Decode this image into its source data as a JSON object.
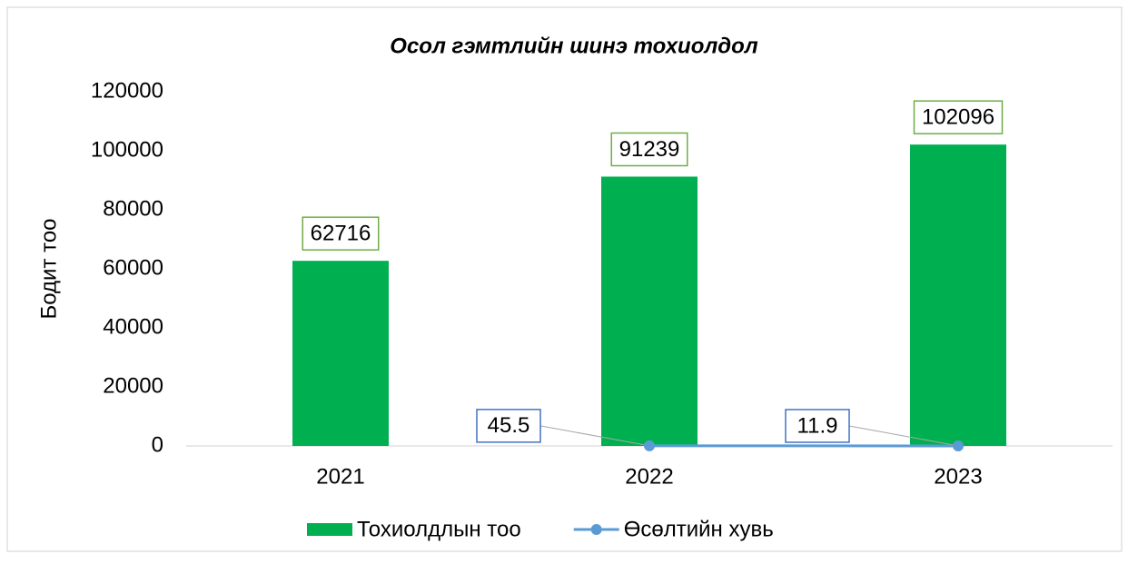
{
  "chart_data": {
    "type": "bar",
    "title": "Осол гэмтлийн шинэ тохиолдол",
    "y_label": "Бодит тоо",
    "categories": [
      "2021",
      "2022",
      "2023"
    ],
    "series": [
      {
        "name": "Тохиолдлын тоо",
        "type": "bar",
        "color": "#00b050",
        "values": [
          62716,
          91239,
          102096
        ]
      },
      {
        "name": "Өсөлтийн хувь",
        "type": "line",
        "color": "#5b9bd5",
        "values": [
          null,
          45.5,
          11.9
        ]
      }
    ],
    "ylim": [
      0,
      120000
    ],
    "yticks": [
      0,
      20000,
      40000,
      60000,
      80000,
      100000,
      120000
    ],
    "grid": false,
    "legend": "bottom"
  }
}
